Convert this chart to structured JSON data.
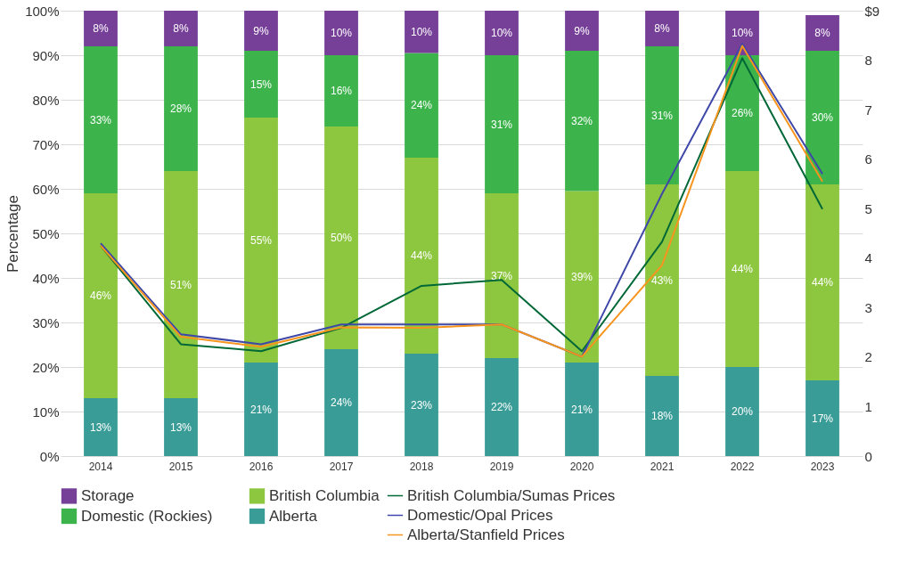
{
  "chart_data": {
    "type": "bar",
    "stacked": true,
    "ylabel": "Percentage",
    "categories": [
      "2014",
      "2015",
      "2016",
      "2017",
      "2018",
      "2019",
      "2020",
      "2021",
      "2022",
      "2023"
    ],
    "series": [
      {
        "name": "Alberta",
        "color": "#3a9c97",
        "values": [
          13,
          13,
          21,
          24,
          23,
          22,
          21,
          18,
          20,
          17
        ],
        "value_labels": [
          "13%",
          "13%",
          "21%",
          "24%",
          "23%",
          "22%",
          "21%",
          "18%",
          "20%",
          "17%"
        ]
      },
      {
        "name": "British Columbia",
        "color": "#8dc63f",
        "values": [
          46,
          51,
          55,
          50,
          44,
          37,
          38.5,
          43,
          44,
          44
        ],
        "value_labels": [
          "46%",
          "51%",
          "55%",
          "50%",
          "44%",
          "37%",
          "39%",
          "43%",
          "44%",
          "44%"
        ]
      },
      {
        "name": "Domestic (Rockies)",
        "color": "#3cb44b",
        "values": [
          33,
          28,
          15,
          16,
          23.5,
          31,
          31.5,
          31,
          26,
          30
        ],
        "value_labels": [
          "33%",
          "28%",
          "15%",
          "16%",
          "24%",
          "31%",
          "32%",
          "31%",
          "26%",
          "30%"
        ]
      },
      {
        "name": "Storage",
        "color": "#763f98",
        "values": [
          8,
          8,
          9,
          10,
          9.5,
          10,
          9,
          8,
          10,
          8
        ],
        "value_labels": [
          "8%",
          "8%",
          "9%",
          "10%",
          "10%",
          "10%",
          "9%",
          "8%",
          "10%",
          "8%"
        ]
      },
      {
        "name": "British Columbia/Sumas Prices",
        "type": "line",
        "axis": "y2",
        "color": "#006837",
        "values": [
          4.25,
          2.26,
          2.12,
          2.59,
          3.44,
          3.56,
          2.12,
          4.33,
          8.04,
          4.99
        ]
      },
      {
        "name": "Domestic/Opal Prices",
        "type": "line",
        "axis": "y2",
        "color": "#3f48a8",
        "values": [
          4.3,
          2.46,
          2.26,
          2.66,
          2.66,
          2.66,
          2.01,
          5.3,
          8.33,
          5.7
        ]
      },
      {
        "name": "Alberta/Stanfield Prices",
        "type": "line",
        "axis": "y2",
        "color": "#f7941d",
        "values": [
          4.25,
          2.41,
          2.21,
          2.6,
          2.59,
          2.66,
          2.01,
          3.86,
          8.29,
          5.55
        ]
      }
    ],
    "ylim": [
      0,
      100
    ],
    "yticks": [
      {
        "value": 0,
        "label": "0%"
      },
      {
        "value": 10,
        "label": "10%"
      },
      {
        "value": 20,
        "label": "20%"
      },
      {
        "value": 30,
        "label": "30%"
      },
      {
        "value": 40,
        "label": "40%"
      },
      {
        "value": 50,
        "label": "50%"
      },
      {
        "value": 60,
        "label": "60%"
      },
      {
        "value": 70,
        "label": "70%"
      },
      {
        "value": 80,
        "label": "80%"
      },
      {
        "value": 90,
        "label": "90%"
      },
      {
        "value": 100,
        "label": "100%"
      }
    ],
    "y2lim": [
      0,
      9
    ],
    "y2ticks": [
      0,
      1,
      2,
      3,
      4,
      5,
      6,
      7,
      8,
      {
        "value": 9,
        "label": "$9"
      }
    ],
    "grid": "y",
    "legend": "bottom",
    "marker": "none",
    "line_style": "solid"
  }
}
